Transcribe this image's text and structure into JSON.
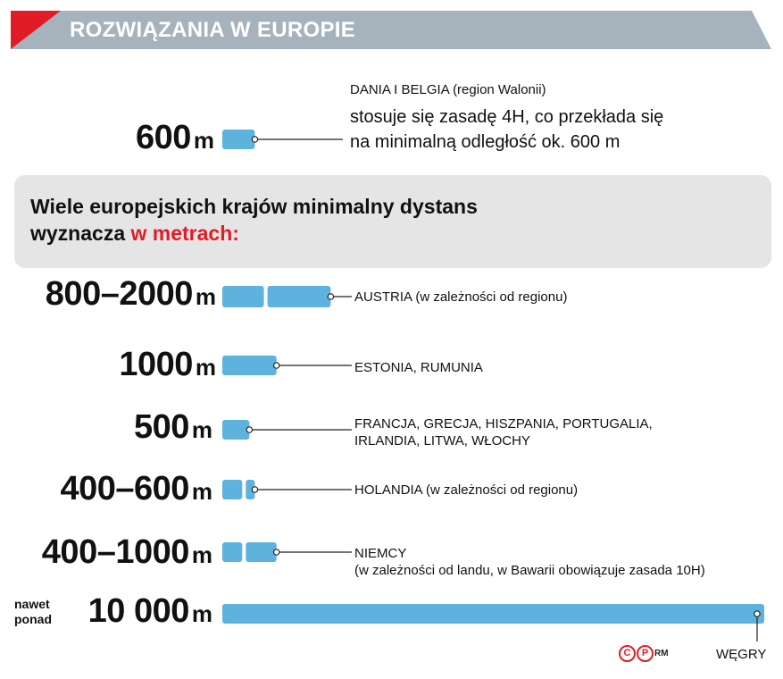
{
  "header": {
    "title": "ROZWIĄZANIA W EUROPIE"
  },
  "denmark": {
    "value": "600",
    "unit": "m",
    "name": "DANIA I BELGIA",
    "region": "(region Walonii)",
    "desc_line1": "stosuje się zasadę 4H, co przekłada się",
    "desc_line2": "na minimalną odległość ok. 600 m"
  },
  "callout": {
    "line1": "Wiele europejskich krajów minimalny dystans",
    "line2_prefix": "wyznacza ",
    "line2_highlight": "w metrach:"
  },
  "rows": [
    {
      "value": "800–2000",
      "unit": "m",
      "label1": "AUSTRIA (w zależności od regionu)",
      "label2": ""
    },
    {
      "value": "1000",
      "unit": "m",
      "label1": "ESTONIA, RUMUNIA",
      "label2": ""
    },
    {
      "value": "500",
      "unit": "m",
      "label1": "FRANCJA, GRECJA, HISZPANIA, PORTUGALIA,",
      "label2": "IRLANDIA, LITWA, WŁOCHY"
    },
    {
      "value": "400–600",
      "unit": "m",
      "label1": "HOLANDIA  (w zależności od regionu)",
      "label2": ""
    },
    {
      "value": "400–1000",
      "unit": "m",
      "label1": "NIEMCY",
      "label2": "(w zależności od landu, w Bawarii obowiązuje zasada 10H)"
    },
    {
      "prefix1": "nawet",
      "prefix2": "ponad",
      "value": "10 000",
      "unit": "m",
      "label1": "WĘGRY",
      "label2": ""
    }
  ],
  "chart_data": {
    "type": "bar",
    "title": "ROZWIĄZANIA W EUROPIE",
    "categories": [
      "DANIA I BELGIA",
      "AUSTRIA",
      "ESTONIA, RUMUNIA",
      "FRANCJA, GRECJA, HISZPANIA, PORTUGALIA, IRLANDIA, LITWA, WŁOCHY",
      "HOLANDIA",
      "NIEMCY",
      "WĘGRY"
    ],
    "min_values": [
      600,
      800,
      1000,
      500,
      400,
      400,
      10000
    ],
    "max_values": [
      600,
      2000,
      1000,
      500,
      600,
      1000,
      10000
    ],
    "unit": "m",
    "colors": {
      "bar": "#5db3de",
      "accent": "#e21c26",
      "header": "#a6b3bd"
    }
  },
  "credit": {
    "c": "C",
    "p": "P",
    "rm": "RM"
  }
}
